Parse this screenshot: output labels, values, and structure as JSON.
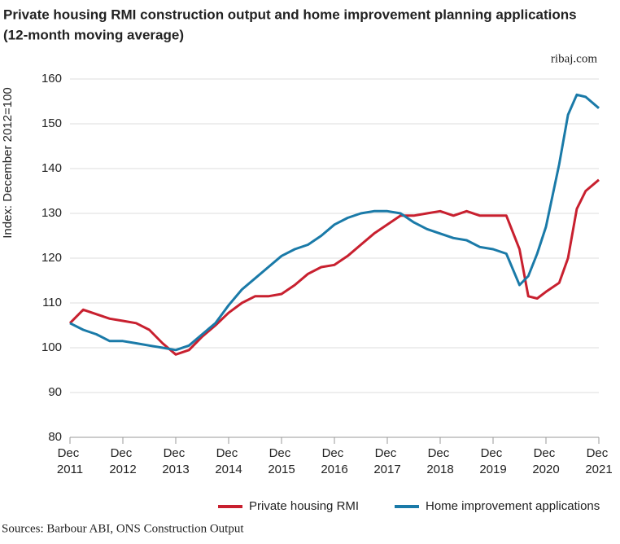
{
  "chart_data": {
    "type": "line",
    "title": "Private housing RMI construction output and home improvement planning applications",
    "subtitle": "(12-month moving average)",
    "source_credit": "ribaj.com",
    "ylabel": "Index: December 2012=100",
    "footnote": "Sources: Barbour ABI, ONS Construction Output",
    "legend": "bottom-right",
    "grid": true,
    "ylim": [
      80,
      160
    ],
    "yticks": [
      80,
      90,
      100,
      110,
      120,
      130,
      140,
      150,
      160
    ],
    "xlim": [
      "2011-12",
      "2021-12"
    ],
    "xticks": [
      {
        "value": "2011-12",
        "label": "Dec 2011"
      },
      {
        "value": "2012-12",
        "label": "Dec 2012"
      },
      {
        "value": "2013-12",
        "label": "Dec 2013"
      },
      {
        "value": "2014-12",
        "label": "Dec 2014"
      },
      {
        "value": "2015-12",
        "label": "Dec 2015"
      },
      {
        "value": "2016-12",
        "label": "Dec 2016"
      },
      {
        "value": "2017-12",
        "label": "Dec 2017"
      },
      {
        "value": "2018-12",
        "label": "Dec 2018"
      },
      {
        "value": "2019-12",
        "label": "Dec 2019"
      },
      {
        "value": "2020-12",
        "label": "Dec 2020"
      },
      {
        "value": "2021-12",
        "label": "Dec 2021"
      }
    ],
    "x": [
      "2011-12",
      "2012-03",
      "2012-06",
      "2012-09",
      "2012-12",
      "2013-03",
      "2013-06",
      "2013-09",
      "2013-12",
      "2014-03",
      "2014-06",
      "2014-09",
      "2014-12",
      "2015-03",
      "2015-06",
      "2015-09",
      "2015-12",
      "2016-03",
      "2016-06",
      "2016-09",
      "2016-12",
      "2017-03",
      "2017-06",
      "2017-09",
      "2017-12",
      "2018-03",
      "2018-06",
      "2018-09",
      "2018-12",
      "2019-03",
      "2019-06",
      "2019-09",
      "2019-12",
      "2020-03",
      "2020-06",
      "2020-08",
      "2020-10",
      "2020-12",
      "2021-03",
      "2021-05",
      "2021-07",
      "2021-09",
      "2021-12"
    ],
    "series": [
      {
        "name": "Private housing RMI",
        "color": "#c8202f",
        "values": [
          105.5,
          108.5,
          107.5,
          106.5,
          106,
          105.5,
          104,
          101,
          98.5,
          99.5,
          102.5,
          105,
          107.8,
          110,
          111.5,
          111.5,
          112,
          114,
          116.5,
          118,
          118.5,
          120.5,
          123,
          125.5,
          127.5,
          129.5,
          129.5,
          130,
          130.5,
          129.5,
          130.5,
          129.5,
          129.5,
          129.5,
          122,
          111.5,
          111,
          112.5,
          114.5,
          120,
          131,
          135,
          137.5
        ]
      },
      {
        "name": "Home improvement applications",
        "color": "#1a7aa8",
        "values": [
          105.5,
          104,
          103,
          101.5,
          101.5,
          101,
          100.5,
          100,
          99.5,
          100.5,
          103,
          105.5,
          109.5,
          113,
          115.5,
          118,
          120.5,
          122,
          123,
          125,
          127.5,
          129,
          130,
          130.5,
          130.5,
          130,
          128,
          126.5,
          125.5,
          124.5,
          124,
          122.5,
          122,
          121,
          114,
          116,
          121,
          127,
          141,
          152,
          156.5,
          156,
          153.5
        ]
      }
    ]
  }
}
